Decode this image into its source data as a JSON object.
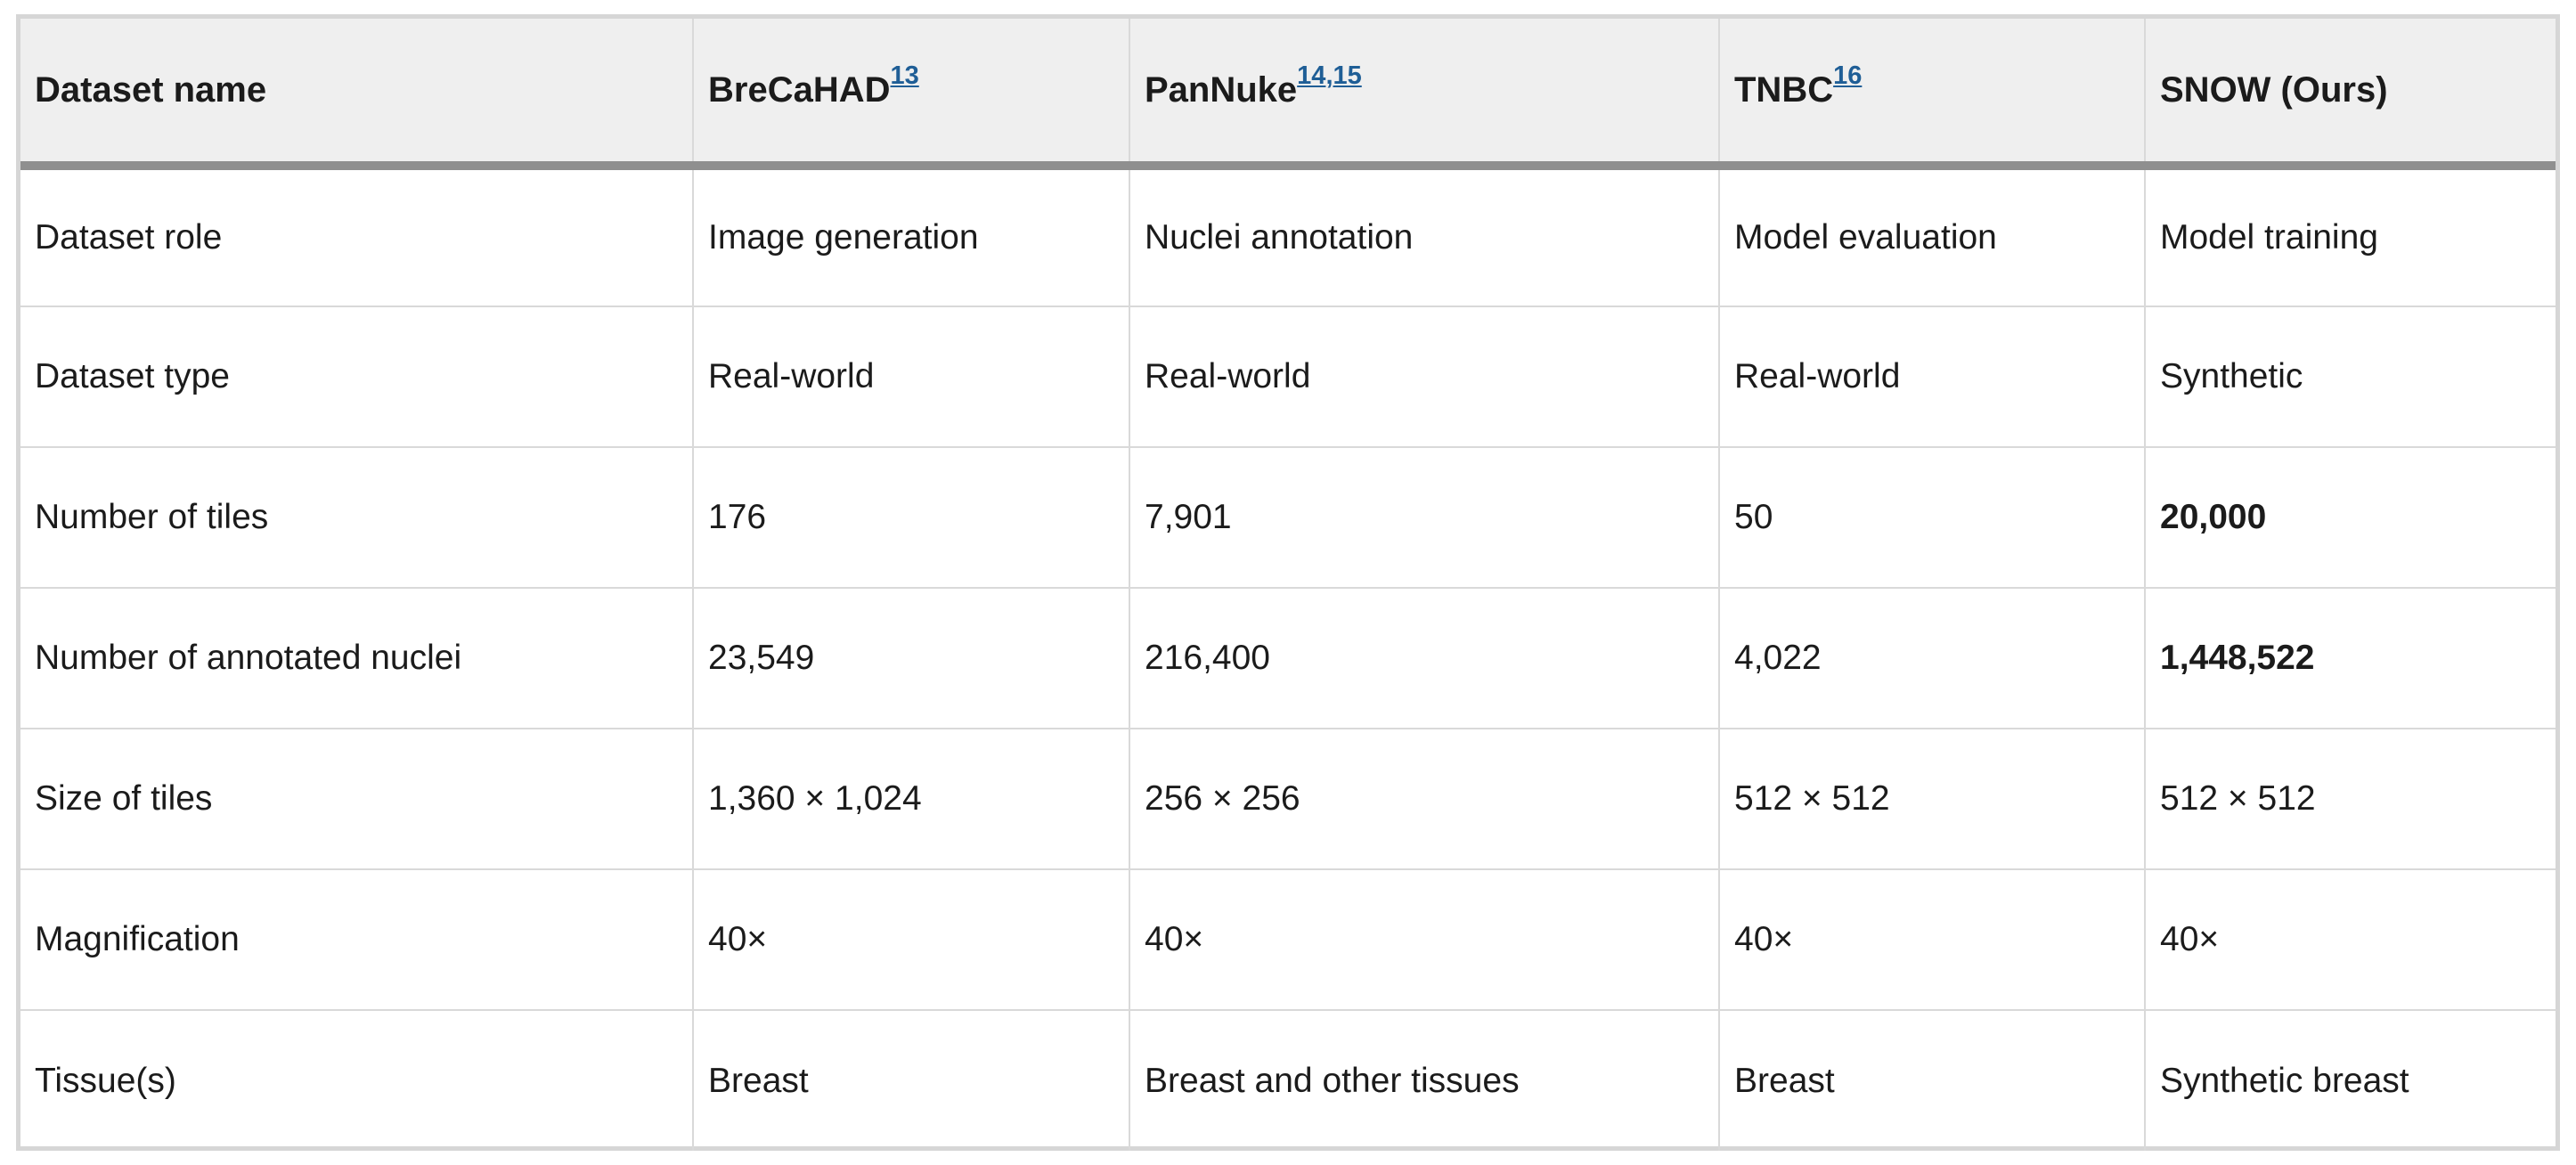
{
  "header": {
    "dataset_name": "Dataset name",
    "cols": [
      {
        "name": "BreCaHAD",
        "refs": [
          "13"
        ]
      },
      {
        "name": "PanNuke",
        "refs": [
          "14",
          "15"
        ]
      },
      {
        "name": "TNBC",
        "refs": [
          "16"
        ]
      },
      {
        "name": "SNOW (Ours)",
        "refs": []
      }
    ]
  },
  "rows": [
    {
      "label": "Dataset role",
      "values": [
        "Image generation",
        "Nuclei annotation",
        "Model evaluation",
        "Model training"
      ],
      "bold_last": false
    },
    {
      "label": "Dataset type",
      "values": [
        "Real-world",
        "Real-world",
        "Real-world",
        "Synthetic"
      ],
      "bold_last": false
    },
    {
      "label": "Number of tiles",
      "values": [
        "176",
        "7,901",
        "50",
        "20,000"
      ],
      "bold_last": true
    },
    {
      "label": "Number of annotated nuclei",
      "values": [
        "23,549",
        "216,400",
        "4,022",
        "1,448,522"
      ],
      "bold_last": true
    },
    {
      "label": "Size of tiles",
      "values": [
        "1,360 × 1,024",
        "256 × 256",
        "512 × 512",
        "512 × 512"
      ],
      "bold_last": false
    },
    {
      "label": "Magnification",
      "values": [
        "40×",
        "40×",
        "40×",
        "40×"
      ],
      "bold_last": false
    },
    {
      "label": "Tissue(s)",
      "values": [
        "Breast",
        "Breast and other tissues",
        "Breast",
        "Synthetic breast"
      ],
      "bold_last": false
    }
  ]
}
